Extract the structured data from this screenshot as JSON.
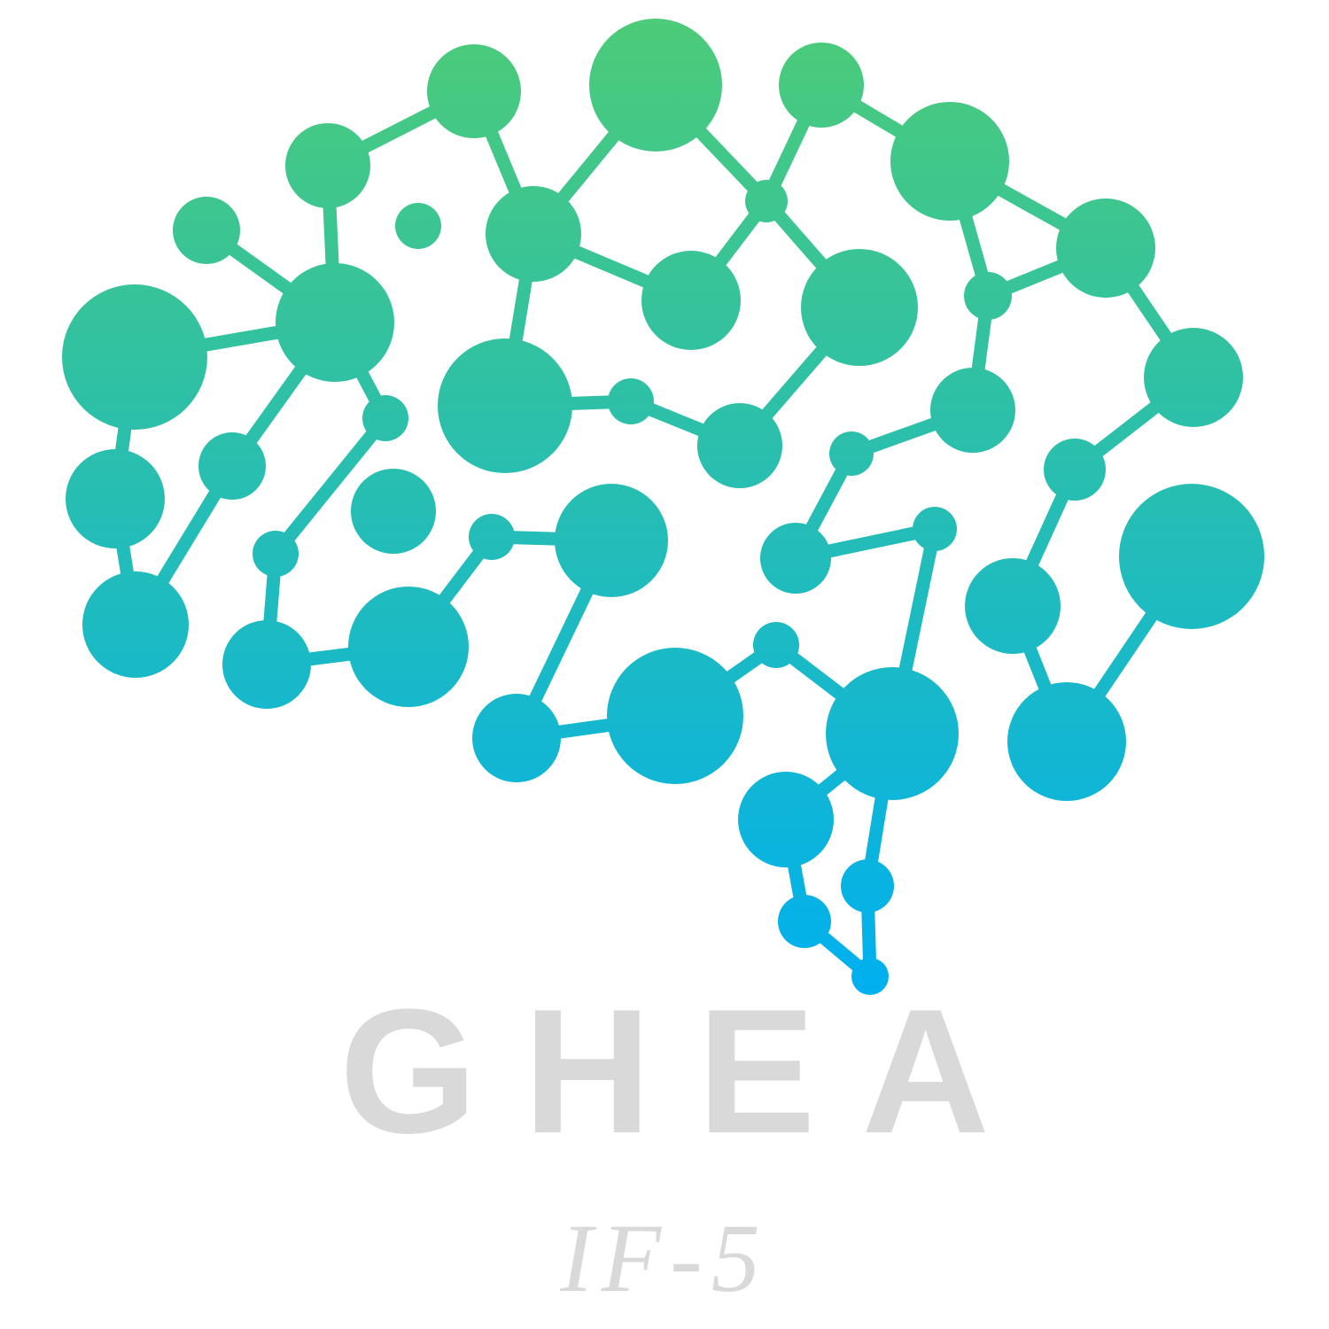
{
  "logo": {
    "brand_name": "GHEA",
    "tagline": "IF-5",
    "text_color": "#d9d9d9",
    "gradient_top_color": "#4ccb78",
    "gradient_bottom_color": "#00b0ef",
    "icon_name": "brain-network-icon"
  }
}
